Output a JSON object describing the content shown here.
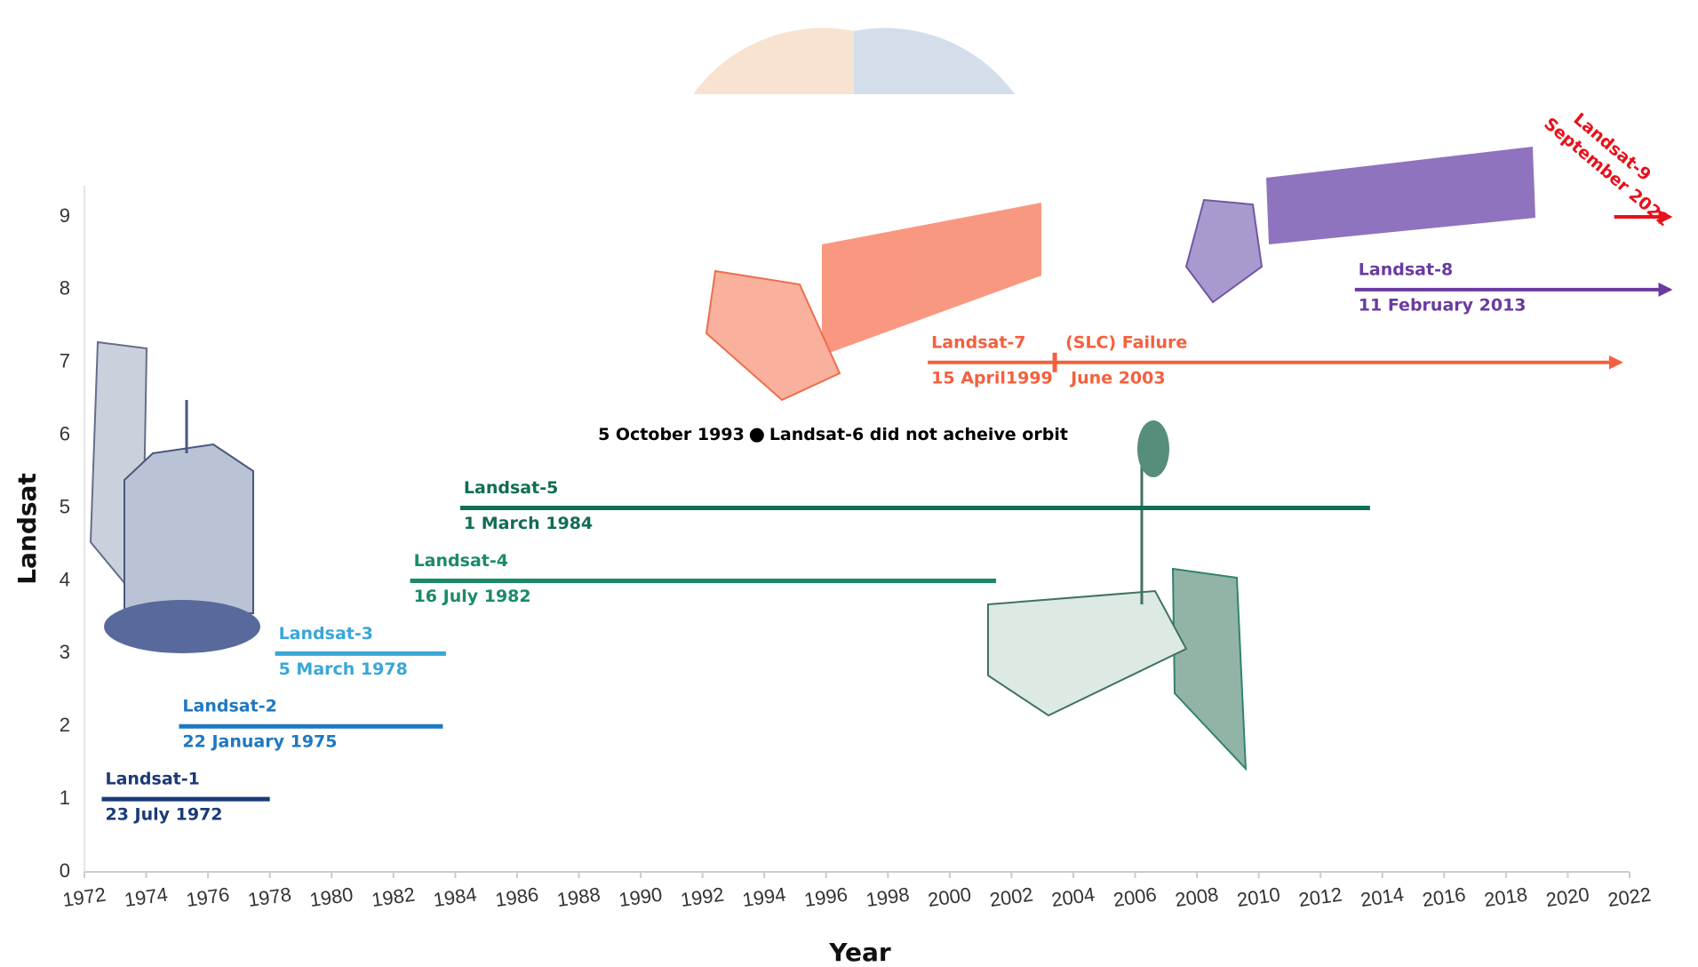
{
  "chart_data": {
    "type": "timeline",
    "xlabel": "Year",
    "ylabel": "Landsat",
    "xlim": [
      1972,
      2022
    ],
    "ylim": [
      0,
      9
    ],
    "xticks": [
      1972,
      1974,
      1976,
      1978,
      1980,
      1982,
      1984,
      1986,
      1988,
      1990,
      1992,
      1994,
      1996,
      1998,
      2000,
      2002,
      2004,
      2006,
      2008,
      2010,
      2012,
      2014,
      2016,
      2018,
      2020,
      2022
    ],
    "yticks": [
      0,
      1,
      2,
      3,
      4,
      5,
      6,
      7,
      8,
      9
    ],
    "series": [
      {
        "name": "Landsat-1",
        "date_label": "23 July 1972",
        "color": "#1b3a78",
        "y": 1,
        "start": 1972.56,
        "end": 1978.0
      },
      {
        "name": "Landsat-2",
        "date_label": "22 January 1975",
        "color": "#1f78c1",
        "y": 2,
        "start": 1975.06,
        "end": 1983.6
      },
      {
        "name": "Landsat-3",
        "date_label": "5 March 1978",
        "color": "#3aa6d8",
        "y": 3,
        "start": 1978.17,
        "end": 1983.7
      },
      {
        "name": "Landsat-4",
        "date_label": "16 July 1982",
        "color": "#1a8a6a",
        "y": 4,
        "start": 1982.54,
        "end": 2001.5
      },
      {
        "name": "Landsat-5",
        "date_label": "1 March 1984",
        "color": "#0f6e55",
        "y": 5,
        "start": 1984.16,
        "end": 2013.6
      },
      {
        "name": "Landsat-6 did not acheive orbit",
        "date_label": "5 October 1993",
        "color": "#000000",
        "y": 6,
        "start": 1993.76
      },
      {
        "name": "Landsat-7",
        "date_label": "15 April1999",
        "color": "#f4603e",
        "y": 7,
        "start": 1999.29,
        "end": 2021.7,
        "arrow": true,
        "event": {
          "label": "(SLC) Failure",
          "date_label": "June 2003",
          "x": 2003.4
        }
      },
      {
        "name": "Landsat-8",
        "date_label": "11 February 2013",
        "color": "#6a3aa0",
        "y": 8,
        "start": 2013.11,
        "end": 2023.3,
        "arrow": true
      },
      {
        "name": "Landsat-9",
        "date_label": "September 2021",
        "color": "#e8101a",
        "y": 9,
        "start": 2021.5,
        "end": 2023.3,
        "arrow": true,
        "rotated": true
      }
    ]
  }
}
